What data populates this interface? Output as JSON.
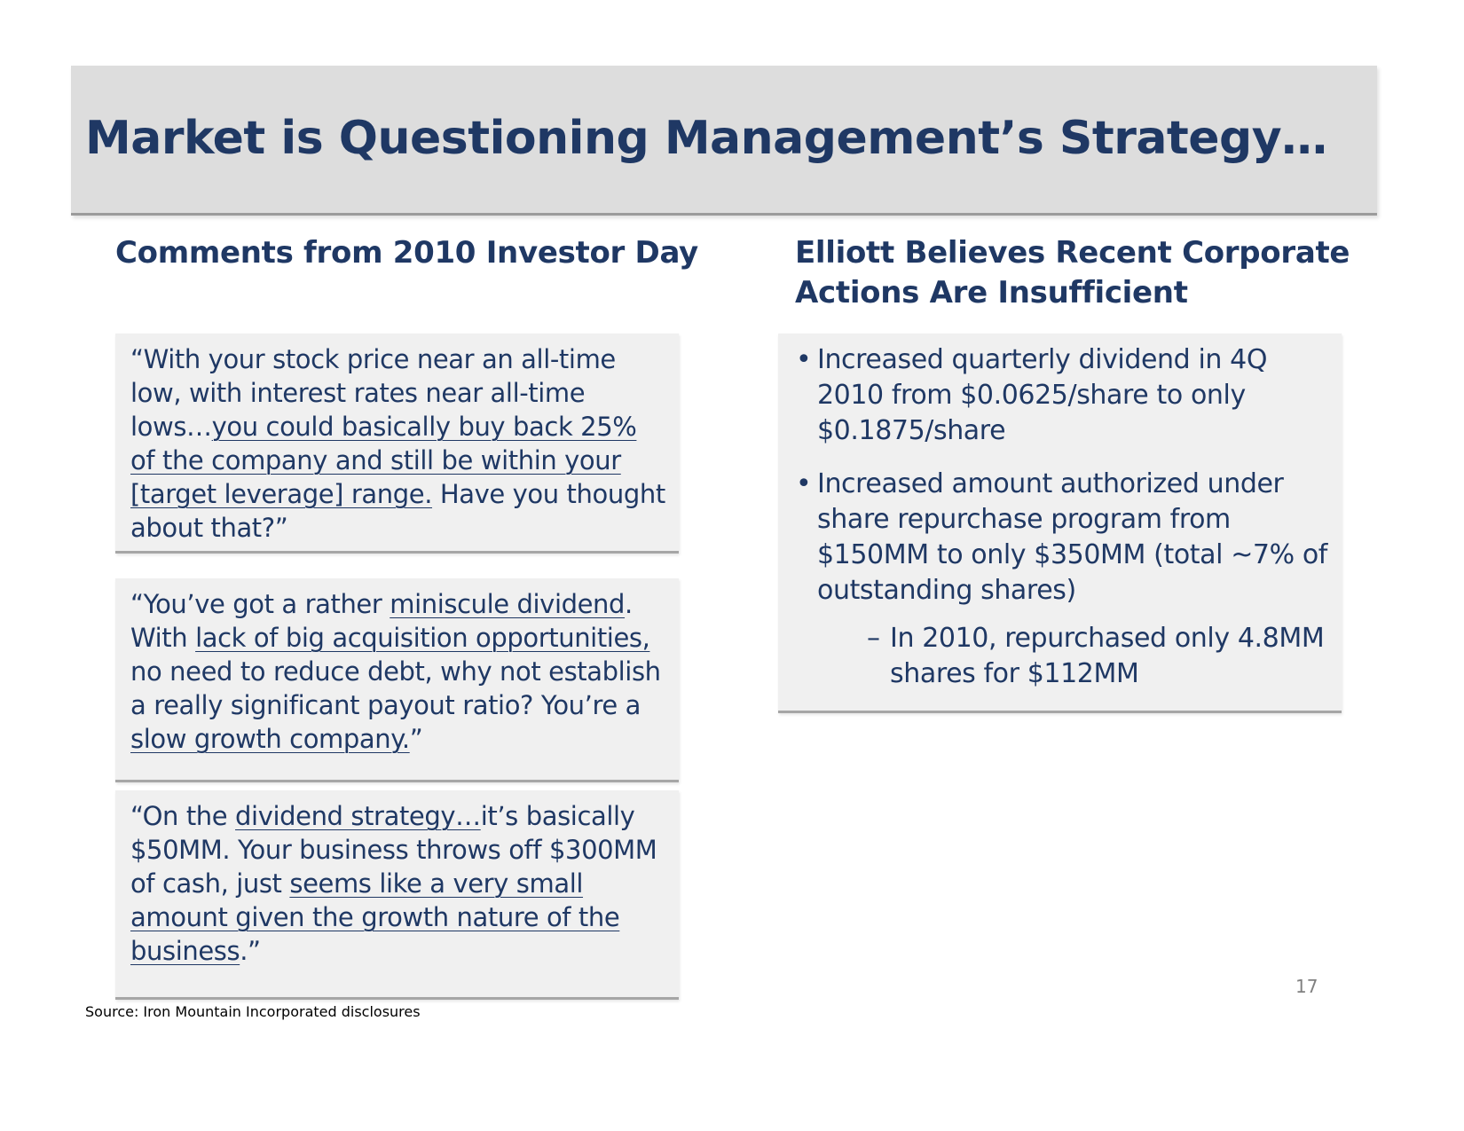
{
  "slide": {
    "title": "Market is Questioning Management’s Strategy…",
    "page_number": "17",
    "source": "Source:  Iron Mountain Incorporated disclosures"
  },
  "left_column": {
    "heading": "Comments from 2010 Investor Day",
    "quotes": [
      {
        "segments": [
          {
            "text": "“With your stock price near an all-time low, with interest rates near all-time lows…",
            "underline": false
          },
          {
            "text": "you could basically buy back 25% of the company and still be within your [target leverage] range.",
            "underline": true
          },
          {
            "text": "  Have you thought about that?”",
            "underline": false
          }
        ]
      },
      {
        "segments": [
          {
            "text": "“You’ve got a rather ",
            "underline": false
          },
          {
            "text": "miniscule dividend",
            "underline": true
          },
          {
            "text": ". With ",
            "underline": false
          },
          {
            "text": "lack of big acquisition opportunities,",
            "underline": true
          },
          {
            "text": " no need to reduce debt, why not establish a really significant payout ratio? You’re a ",
            "underline": false
          },
          {
            "text": "slow growth company.",
            "underline": true
          },
          {
            "text": "”",
            "underline": false
          }
        ]
      },
      {
        "segments": [
          {
            "text": "“On the ",
            "underline": false
          },
          {
            "text": "dividend strategy…",
            "underline": true
          },
          {
            "text": "it’s basically $50MM.  Your business throws off $300MM of cash, just ",
            "underline": false
          },
          {
            "text": "seems like a very small amount given the growth nature of the business",
            "underline": true
          },
          {
            "text": ".”",
            "underline": false
          }
        ]
      }
    ]
  },
  "right_column": {
    "heading": "Elliott Believes Recent Corporate Actions Are Insufficient",
    "bullet_symbol": "•",
    "sub_bullet_symbol": "–",
    "bullets": [
      {
        "text": "Increased quarterly dividend in 4Q 2010 from $0.0625/share to only $0.1875/share"
      },
      {
        "text": "Increased amount authorized under share repurchase program from $150MM to only $350MM (total ~7% of outstanding shares)"
      }
    ],
    "sub_bullets": [
      {
        "text": "In 2010, repurchased only 4.8MM shares for $112MM"
      }
    ]
  },
  "colors": {
    "title_text": "#1f3864",
    "title_bar": "#dddddd",
    "box_background": "#f0f0f0",
    "box_rule": "#a6a6a6",
    "page_number": "#808080"
  }
}
